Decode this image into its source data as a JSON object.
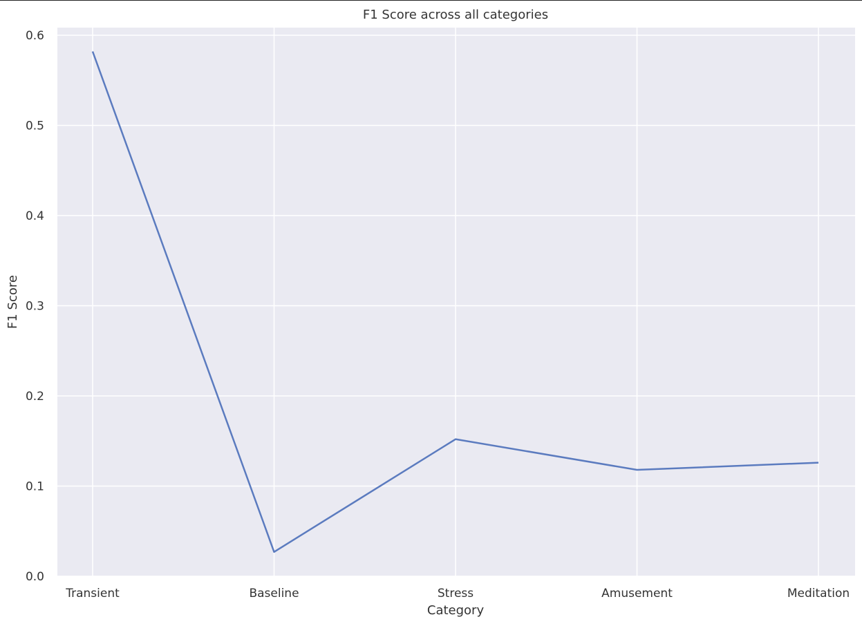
{
  "colors": {
    "plot_background": "#eaeaf2",
    "grid": "#ffffff",
    "line": "#5b7bbf",
    "text": "#333333"
  },
  "chart_data": {
    "type": "line",
    "title": "F1 Score across all categories",
    "xlabel": "Category",
    "ylabel": "F1 Score",
    "categories": [
      "Transient",
      "Baseline",
      "Stress",
      "Amusement",
      "Meditation"
    ],
    "series": [
      {
        "values": [
          0.582,
          0.027,
          0.152,
          0.118,
          0.126
        ]
      }
    ],
    "ylim": [
      0.0,
      0.6
    ],
    "yticks": [
      0.0,
      0.1,
      0.2,
      0.3,
      0.4,
      0.5,
      0.6
    ],
    "ytick_labels": [
      "0.0",
      "0.1",
      "0.2",
      "0.3",
      "0.4",
      "0.5",
      "0.6"
    ],
    "grid": true,
    "legend": false
  }
}
